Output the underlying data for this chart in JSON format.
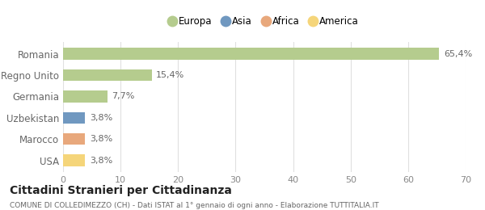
{
  "categories": [
    "Romania",
    "Regno Unito",
    "Germania",
    "Uzbekistan",
    "Marocco",
    "USA"
  ],
  "values": [
    65.4,
    15.4,
    7.7,
    3.8,
    3.8,
    3.8
  ],
  "labels": [
    "65,4%",
    "15,4%",
    "7,7%",
    "3,8%",
    "3,8%",
    "3,8%"
  ],
  "colors": [
    "#b5cc8e",
    "#b5cc8e",
    "#b5cc8e",
    "#7098c0",
    "#e8a87c",
    "#f5d57a"
  ],
  "legend_items": [
    {
      "label": "Europa",
      "color": "#b5cc8e"
    },
    {
      "label": "Asia",
      "color": "#7098c0"
    },
    {
      "label": "Africa",
      "color": "#e8a87c"
    },
    {
      "label": "America",
      "color": "#f5d57a"
    }
  ],
  "xlim": [
    0,
    70
  ],
  "xticks": [
    0,
    10,
    20,
    30,
    40,
    50,
    60,
    70
  ],
  "title": "Cittadini Stranieri per Cittadinanza",
  "subtitle": "COMUNE DI COLLEDIMEZZO (CH) - Dati ISTAT al 1° gennaio di ogni anno - Elaborazione TUTTITALIA.IT",
  "background_color": "#ffffff",
  "grid_color": "#e0e0e0",
  "bar_height": 0.55
}
